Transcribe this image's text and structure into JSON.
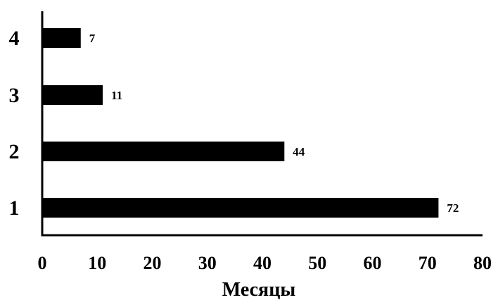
{
  "chart_data": {
    "type": "bar",
    "orientation": "horizontal",
    "title": "",
    "xlabel": "Месяцы",
    "ylabel": "",
    "categories": [
      "1",
      "2",
      "3",
      "4"
    ],
    "values": [
      72,
      44,
      11,
      7
    ],
    "data_labels": [
      "72",
      "44",
      "11",
      "7"
    ],
    "xlim": [
      0,
      80
    ],
    "xticks": [
      0,
      10,
      20,
      30,
      40,
      50,
      60,
      70,
      80
    ],
    "xtick_labels": [
      "0",
      "10",
      "20",
      "30",
      "40",
      "50",
      "60",
      "70",
      "80"
    ],
    "grid": false,
    "legend": "none",
    "bar_color": "#000000"
  }
}
